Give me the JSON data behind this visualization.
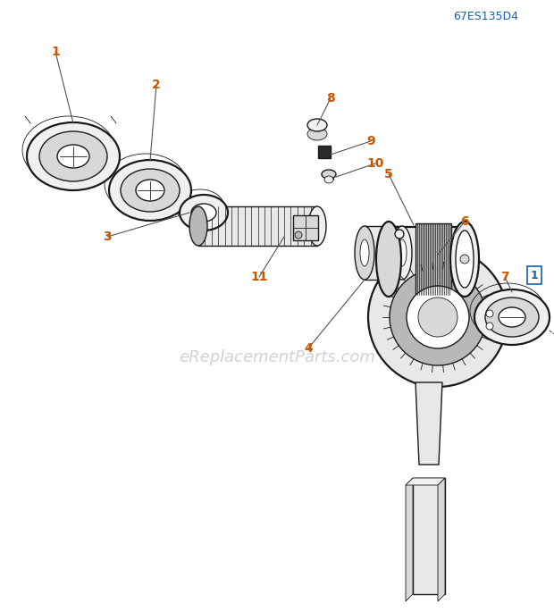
{
  "title": "67ES135D4",
  "watermark": "eReplacementParts.com",
  "bg_color": "#ffffff",
  "line_color": "#1a1a1a",
  "label_color": "#cc5500",
  "label_box_color": "#1a5fa8",
  "lw_thin": 0.6,
  "lw_med": 1.0,
  "lw_thick": 1.6
}
